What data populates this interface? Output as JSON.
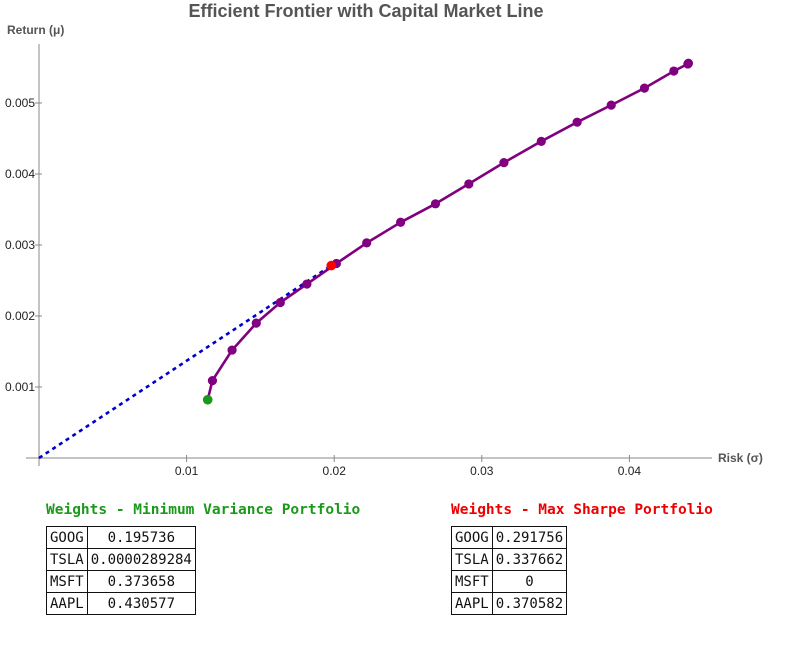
{
  "chart_data": {
    "type": "line",
    "title": "Efficient Frontier with Capital Market Line",
    "xlabel": "Risk (σ)",
    "ylabel": "Return (μ)",
    "xlim": [
      0,
      0.0452
    ],
    "ylim": [
      0,
      0.0058
    ],
    "xticks": [
      {
        "value": 0.01,
        "label": "0.01"
      },
      {
        "value": 0.02,
        "label": "0.02"
      },
      {
        "value": 0.03,
        "label": "0.03"
      },
      {
        "value": 0.04,
        "label": "0.04"
      }
    ],
    "yticks": [
      {
        "value": 0.001,
        "label": "0.001"
      },
      {
        "value": 0.002,
        "label": "0.002"
      },
      {
        "value": 0.003,
        "label": "0.003"
      },
      {
        "value": 0.004,
        "label": "0.004"
      },
      {
        "value": 0.005,
        "label": "0.005"
      }
    ],
    "grid": false,
    "series": [
      {
        "color": "#800080",
        "style": "solid-with-markers",
        "points": [
          [
            0.01143,
            0.00082
          ],
          [
            0.01175,
            0.00109
          ],
          [
            0.01308,
            0.00152
          ],
          [
            0.01472,
            0.0019
          ],
          [
            0.01635,
            0.00219
          ],
          [
            0.01815,
            0.00245
          ],
          [
            0.02015,
            0.00274
          ],
          [
            0.0222,
            0.00303
          ],
          [
            0.0245,
            0.00332
          ],
          [
            0.02686,
            0.00358
          ],
          [
            0.02912,
            0.00386
          ],
          [
            0.0315,
            0.00416
          ],
          [
            0.03403,
            0.00446
          ],
          [
            0.03646,
            0.00473
          ],
          [
            0.03877,
            0.00497
          ],
          [
            0.04102,
            0.00521
          ],
          [
            0.04301,
            0.00545
          ],
          [
            0.04396,
            0.00555
          ],
          [
            0.044,
            0.00556
          ]
        ]
      },
      {
        "color": "#0000cc",
        "style": "dashed",
        "points": [
          [
            0.0,
            0.0
          ],
          [
            0.0198,
            0.00271
          ]
        ]
      }
    ],
    "highlights": [
      {
        "x": 0.01143,
        "y": 0.00082,
        "color": "#1a9a1a"
      },
      {
        "x": 0.0198,
        "y": 0.00271,
        "color": "#ff0000"
      }
    ]
  },
  "panels": {
    "min_variance": {
      "title": "Weights - Minimum Variance Portfolio",
      "color": "#1a9a1a",
      "rows": [
        {
          "ticker": "GOOG",
          "weight": "0.195736"
        },
        {
          "ticker": "TSLA",
          "weight": "0.0000289284"
        },
        {
          "ticker": "MSFT",
          "weight": "0.373658"
        },
        {
          "ticker": "AAPL",
          "weight": "0.430577"
        }
      ]
    },
    "max_sharpe": {
      "title": "Weights - Max Sharpe Portfolio",
      "color": "#ee0000",
      "rows": [
        {
          "ticker": "GOOG",
          "weight": "0.291756"
        },
        {
          "ticker": "TSLA",
          "weight": "0.337662"
        },
        {
          "ticker": "MSFT",
          "weight": "0"
        },
        {
          "ticker": "AAPL",
          "weight": "0.370582"
        }
      ]
    }
  }
}
